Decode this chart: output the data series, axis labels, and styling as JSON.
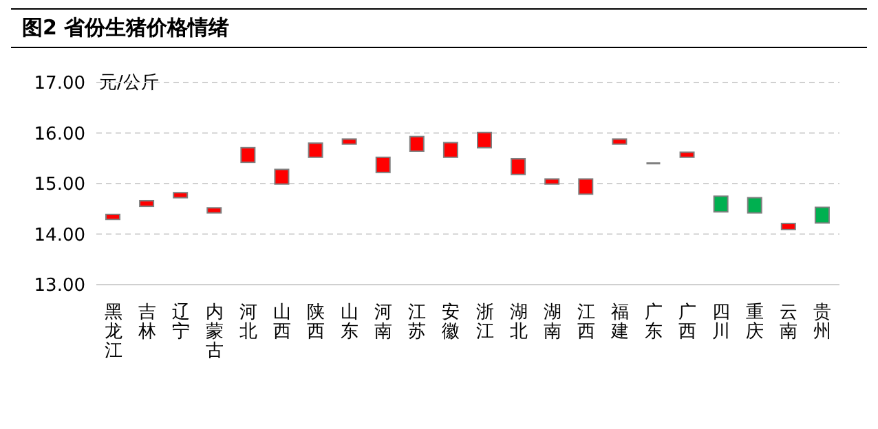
{
  "chart_data": {
    "type": "candlestick",
    "title": "图2 省份生猪价格情绪",
    "ylabel": "元/公斤",
    "categories": [
      "黑龙江",
      "吉林",
      "辽宁",
      "内蒙古",
      "河北",
      "山西",
      "陕西",
      "山东",
      "河南",
      "江苏",
      "安徽",
      "浙江",
      "湖北",
      "湖南",
      "江西",
      "福建",
      "广东",
      "广西",
      "四川",
      "重庆",
      "云南",
      "贵州"
    ],
    "ohlc": [
      [
        14.29,
        14.39,
        14.29,
        14.39
      ],
      [
        14.55,
        14.66,
        14.55,
        14.66
      ],
      [
        14.72,
        14.82,
        14.72,
        14.82
      ],
      [
        14.42,
        14.52,
        14.42,
        14.52
      ],
      [
        15.42,
        15.71,
        15.42,
        15.71
      ],
      [
        14.99,
        15.28,
        14.99,
        15.28
      ],
      [
        15.52,
        15.8,
        15.52,
        15.8
      ],
      [
        15.78,
        15.88,
        15.78,
        15.88
      ],
      [
        15.22,
        15.52,
        15.22,
        15.52
      ],
      [
        15.64,
        15.93,
        15.64,
        15.93
      ],
      [
        15.52,
        15.81,
        15.52,
        15.81
      ],
      [
        15.71,
        16.01,
        15.71,
        16.01
      ],
      [
        15.18,
        15.49,
        15.18,
        15.49
      ],
      [
        14.99,
        15.09,
        14.99,
        15.09
      ],
      [
        14.79,
        15.09,
        14.79,
        15.09
      ],
      [
        15.78,
        15.88,
        15.78,
        15.88
      ],
      [
        15.4,
        15.4,
        15.4,
        15.4
      ],
      [
        15.52,
        15.62,
        15.52,
        15.62
      ],
      [
        14.75,
        14.75,
        14.44,
        14.44
      ],
      [
        14.72,
        14.72,
        14.42,
        14.42
      ],
      [
        14.09,
        14.21,
        14.09,
        14.21
      ],
      [
        14.53,
        14.53,
        14.22,
        14.22
      ]
    ],
    "colors": [
      "#ff0000",
      "#ff0000",
      "#ff0000",
      "#ff0000",
      "#ff0000",
      "#ff0000",
      "#ff0000",
      "#ff0000",
      "#ff0000",
      "#ff0000",
      "#ff0000",
      "#ff0000",
      "#ff0000",
      "#ff0000",
      "#ff0000",
      "#ff0000",
      "#808080",
      "#ff0000",
      "#00b050",
      "#00b050",
      "#ff0000",
      "#00b050"
    ],
    "ylim": [
      13,
      17
    ],
    "yticks": [
      {
        "value": 13,
        "label": "13.00"
      },
      {
        "value": 14,
        "label": "14.00"
      },
      {
        "value": 15,
        "label": "15.00"
      },
      {
        "value": 16,
        "label": "16.00"
      },
      {
        "value": 17,
        "label": "17.00"
      }
    ],
    "grid": "y"
  }
}
